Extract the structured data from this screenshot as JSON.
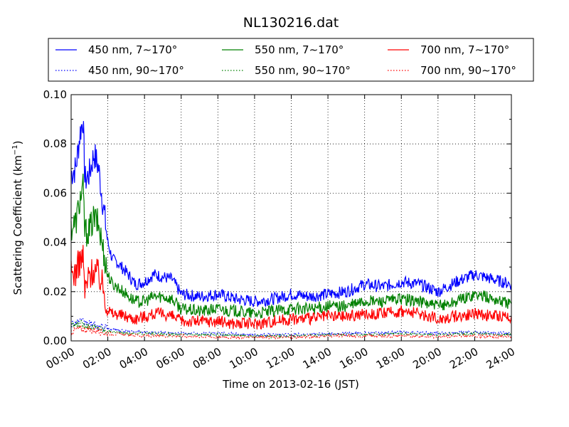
{
  "chart_data": {
    "type": "line",
    "title": "NL130216.dat",
    "xlabel": "Time on 2013-02-16 (JST)",
    "ylabel": "Scattering Coefficient (km",
    "ylabel_sup": "−1",
    "ylabel_end": ")",
    "xlim": [
      0,
      24
    ],
    "ylim": [
      0,
      0.1
    ],
    "grid": true,
    "legend_position": "top",
    "x_ticks": [
      0,
      2,
      4,
      6,
      8,
      10,
      12,
      14,
      16,
      18,
      20,
      22,
      24
    ],
    "x_tick_labels": [
      "00:00",
      "02:00",
      "04:00",
      "06:00",
      "08:00",
      "10:00",
      "12:00",
      "14:00",
      "16:00",
      "18:00",
      "20:00",
      "22:00",
      "24:00"
    ],
    "y_ticks": [
      0,
      0.02,
      0.04,
      0.06,
      0.08,
      0.1
    ],
    "y_tick_labels": [
      "0.00",
      "0.02",
      "0.04",
      "0.06",
      "0.08",
      "0.10"
    ],
    "series": [
      {
        "name": "450 nm, 7∼170°",
        "color": "#0000ff",
        "style": "solid",
        "x": [
          0,
          0.25,
          0.5,
          0.65,
          0.75,
          1.0,
          1.25,
          1.5,
          1.75,
          2.0,
          2.25,
          2.5,
          3.0,
          3.5,
          4.0,
          4.5,
          5.0,
          5.5,
          6.0,
          7.0,
          8.0,
          9.0,
          10.0,
          11.0,
          12.0,
          13.0,
          14.0,
          15.0,
          16.0,
          17.0,
          18.0,
          19.0,
          20.0,
          21.0,
          22.0,
          23.0,
          24.0
        ],
        "y": [
          0.068,
          0.07,
          0.085,
          0.09,
          0.065,
          0.068,
          0.076,
          0.07,
          0.055,
          0.04,
          0.033,
          0.032,
          0.028,
          0.023,
          0.024,
          0.027,
          0.026,
          0.025,
          0.019,
          0.018,
          0.019,
          0.017,
          0.016,
          0.017,
          0.019,
          0.018,
          0.019,
          0.02,
          0.023,
          0.022,
          0.024,
          0.023,
          0.02,
          0.024,
          0.027,
          0.025,
          0.023
        ]
      },
      {
        "name": "550 nm, 7∼170°",
        "color": "#008000",
        "style": "solid",
        "x": [
          0,
          0.25,
          0.5,
          0.65,
          0.75,
          1.0,
          1.25,
          1.5,
          1.75,
          2.0,
          2.25,
          2.5,
          3.0,
          3.5,
          4.0,
          4.5,
          5.0,
          5.5,
          6.0,
          7.0,
          8.0,
          9.0,
          10.0,
          11.0,
          12.0,
          13.0,
          14.0,
          15.0,
          16.0,
          17.0,
          18.0,
          19.0,
          20.0,
          21.0,
          22.0,
          23.0,
          24.0
        ],
        "y": [
          0.046,
          0.048,
          0.058,
          0.062,
          0.044,
          0.045,
          0.05,
          0.047,
          0.037,
          0.027,
          0.023,
          0.022,
          0.019,
          0.016,
          0.016,
          0.018,
          0.018,
          0.017,
          0.013,
          0.012,
          0.013,
          0.012,
          0.011,
          0.012,
          0.013,
          0.013,
          0.014,
          0.014,
          0.016,
          0.016,
          0.017,
          0.016,
          0.014,
          0.016,
          0.019,
          0.017,
          0.015
        ]
      },
      {
        "name": "700 nm, 7∼170°",
        "color": "#ff0000",
        "style": "solid",
        "x": [
          0,
          0.25,
          0.5,
          0.65,
          0.75,
          1.0,
          1.25,
          1.5,
          1.75,
          2.0,
          2.25,
          2.5,
          3.0,
          3.5,
          4.0,
          4.5,
          5.0,
          5.5,
          6.0,
          7.0,
          8.0,
          9.0,
          10.0,
          11.0,
          12.0,
          13.0,
          14.0,
          15.0,
          16.0,
          17.0,
          18.0,
          19.0,
          20.0,
          21.0,
          22.0,
          23.0,
          24.0
        ],
        "y": [
          0.027,
          0.028,
          0.033,
          0.034,
          0.02,
          0.027,
          0.029,
          0.027,
          0.022,
          0.013,
          0.011,
          0.011,
          0.01,
          0.009,
          0.01,
          0.011,
          0.011,
          0.01,
          0.008,
          0.008,
          0.008,
          0.007,
          0.007,
          0.008,
          0.009,
          0.009,
          0.01,
          0.01,
          0.011,
          0.011,
          0.012,
          0.011,
          0.009,
          0.01,
          0.011,
          0.01,
          0.01
        ]
      },
      {
        "name": "450 nm, 90∼170°",
        "color": "#0000ff",
        "style": "dotted",
        "x": [
          0,
          0.5,
          1.0,
          1.5,
          2.0,
          3.0,
          4.0,
          6.0,
          8.0,
          10.0,
          12.0,
          14.0,
          16.0,
          18.0,
          20.0,
          22.0,
          24.0
        ],
        "y": [
          0.007,
          0.008,
          0.007,
          0.006,
          0.005,
          0.004,
          0.0035,
          0.003,
          0.003,
          0.0025,
          0.0025,
          0.003,
          0.003,
          0.0035,
          0.003,
          0.0035,
          0.003
        ]
      },
      {
        "name": "550 nm, 90∼170°",
        "color": "#008000",
        "style": "dotted",
        "x": [
          0,
          0.5,
          1.0,
          1.5,
          2.0,
          3.0,
          4.0,
          6.0,
          8.0,
          10.0,
          12.0,
          14.0,
          16.0,
          18.0,
          20.0,
          22.0,
          24.0
        ],
        "y": [
          0.006,
          0.007,
          0.006,
          0.005,
          0.004,
          0.003,
          0.003,
          0.0025,
          0.0025,
          0.002,
          0.002,
          0.0025,
          0.0025,
          0.003,
          0.0025,
          0.003,
          0.0025
        ]
      },
      {
        "name": "700 nm, 90∼170°",
        "color": "#ff0000",
        "style": "dotted",
        "x": [
          0,
          0.5,
          1.0,
          1.5,
          2.0,
          3.0,
          4.0,
          6.0,
          8.0,
          10.0,
          12.0,
          14.0,
          16.0,
          18.0,
          20.0,
          22.0,
          24.0
        ],
        "y": [
          0.004,
          0.005,
          0.0045,
          0.004,
          0.003,
          0.0025,
          0.002,
          0.002,
          0.0015,
          0.0015,
          0.0015,
          0.002,
          0.002,
          0.002,
          0.0018,
          0.002,
          0.0018
        ]
      }
    ]
  }
}
